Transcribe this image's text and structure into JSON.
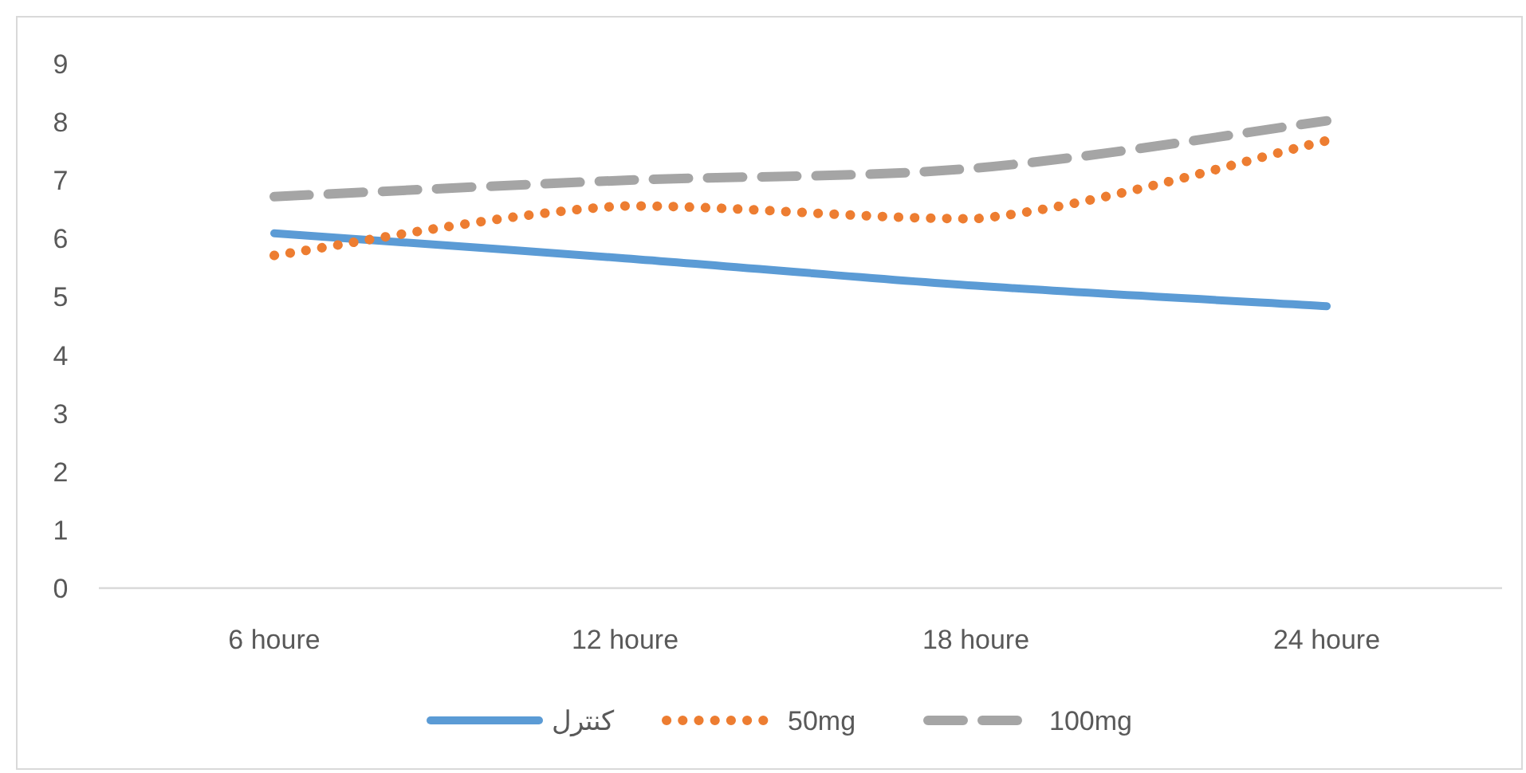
{
  "chart_data": {
    "type": "line",
    "categories": [
      "6 houre",
      "12 houre",
      "18 houre",
      "24 houre"
    ],
    "series": [
      {
        "name": "كنترل",
        "color": "#5b9bd5",
        "line_style": "solid",
        "values": [
          6.09,
          5.66,
          5.19,
          4.84
        ]
      },
      {
        "name": "50mg",
        "color": "#ed7d31",
        "line_style": "dotted",
        "values": [
          5.71,
          6.56,
          6.34,
          7.68
        ]
      },
      {
        "name": "100mg",
        "color": "#a5a5a5",
        "line_style": "dashed",
        "values": [
          6.72,
          7.0,
          7.21,
          8.02
        ]
      }
    ],
    "ylim": [
      0,
      9
    ],
    "yticks": [
      0,
      1,
      2,
      3,
      4,
      5,
      6,
      7,
      8,
      9
    ],
    "grid": false,
    "legend": "bottom",
    "marker": "none"
  }
}
